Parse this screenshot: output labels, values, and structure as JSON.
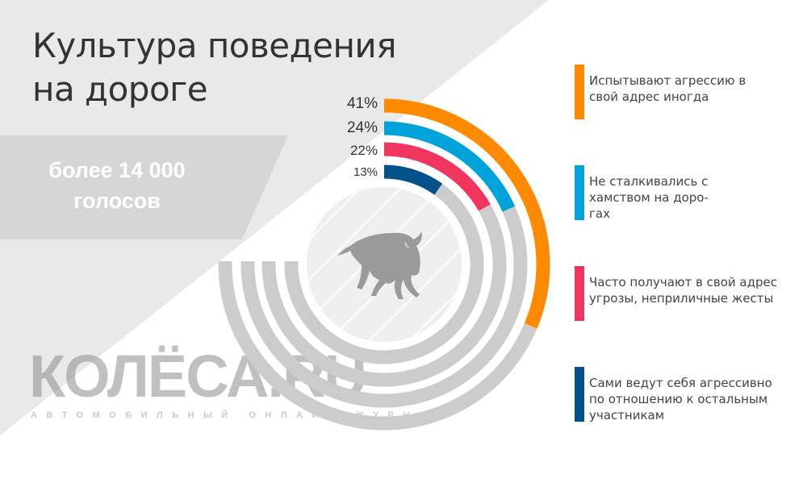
{
  "header": {
    "title_line1": "Культура поведения",
    "title_line2": "на дороге"
  },
  "votes": {
    "line1": "более 14 000",
    "line2": "голосов"
  },
  "logo": {
    "name": "КОЛЁСА.RU",
    "tagline": "АВТОМОБИЛЬНЫЙ ОНЛАЙН-ЖУРНАЛ"
  },
  "chart_data": {
    "type": "radial-bar",
    "title": "Культура поведения на дороге",
    "categories": [
      "Испытывают агрессию в свой адрес иногда",
      "Не сталкивались с хамством на дорогах",
      "Часто получают в свой адрес угрозы, неприличные жесты",
      "Сами ведут себя агрессивно по отношению к остальным участникам"
    ],
    "values": [
      41,
      24,
      22,
      13
    ],
    "labels": [
      "41%",
      "24%",
      "22%",
      "13%"
    ],
    "colors": [
      "#ff8a00",
      "#00a3d9",
      "#f0365e",
      "#04508a"
    ],
    "track_color": "#cccccc",
    "legend_placement": "right"
  },
  "legend": [
    {
      "line1": "Испытывают агрессию в",
      "line2": "свой адрес иногда",
      "line3": ""
    },
    {
      "line1": "Не сталкивались с",
      "line2": "хамством на доро-",
      "line3": "гах"
    },
    {
      "line1": "Часто получают в свой адрес",
      "line2": "угрозы, неприличные жесты",
      "line3": ""
    },
    {
      "line1": "Сами ведут себя агрессивно",
      "line2": "по отношению к остальным",
      "line3": "участникам"
    }
  ]
}
